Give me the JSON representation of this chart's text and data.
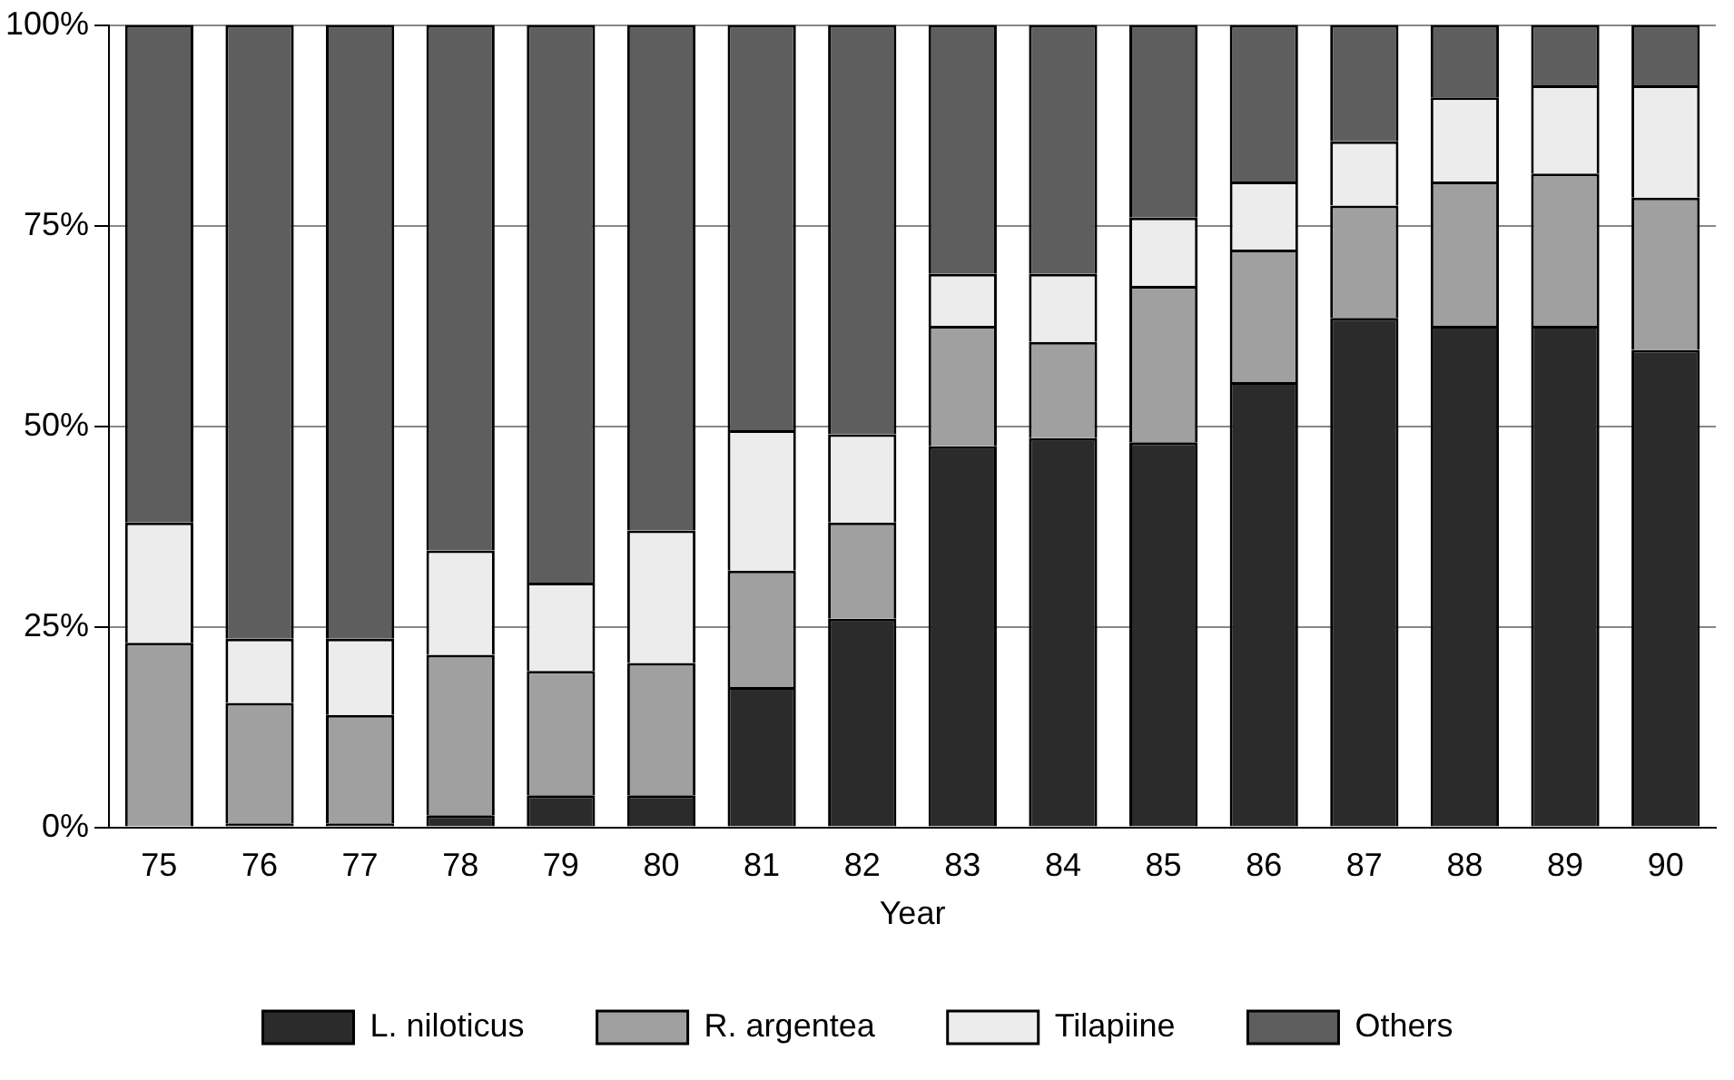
{
  "chart_data": {
    "type": "bar",
    "stacked": true,
    "xlabel": "Year",
    "categories": [
      "75",
      "76",
      "77",
      "78",
      "79",
      "80",
      "81",
      "82",
      "83",
      "84",
      "85",
      "86",
      "87",
      "88",
      "89",
      "90"
    ],
    "series": [
      {
        "name": "L. niloticus",
        "color": "#2b2b2b",
        "values": [
          0,
          0.5,
          0.5,
          1.5,
          4,
          4,
          17.5,
          26,
          47.5,
          48.5,
          48,
          55.5,
          63.5,
          62.5,
          62.5,
          59.5
        ]
      },
      {
        "name": "R. argentea",
        "color": "#a0a0a0",
        "values": [
          23,
          15,
          13.5,
          20,
          15.5,
          16.5,
          14.5,
          12,
          15,
          12,
          19.5,
          16.5,
          14,
          18,
          19,
          19
        ]
      },
      {
        "name": "Tilapiine",
        "color": "#ececec",
        "values": [
          15,
          8,
          9.5,
          13,
          11,
          16.5,
          17.5,
          11,
          6.5,
          8.5,
          8.5,
          8.5,
          8,
          10.5,
          11,
          14
        ]
      },
      {
        "name": "Others",
        "color": "#5e5e5e",
        "values": [
          62,
          76.5,
          76.5,
          65.5,
          69.5,
          63,
          50.5,
          51,
          31,
          31,
          24,
          19.5,
          14.5,
          9,
          7.5,
          7.5
        ]
      }
    ],
    "ylim": [
      0,
      100
    ],
    "yticks": [
      {
        "value": 0,
        "label": "0%"
      },
      {
        "value": 25,
        "label": "25%"
      },
      {
        "value": 50,
        "label": "50%"
      },
      {
        "value": 75,
        "label": "75%"
      },
      {
        "value": 100,
        "label": "100%"
      }
    ],
    "grid": "y",
    "legend": "bottom"
  }
}
